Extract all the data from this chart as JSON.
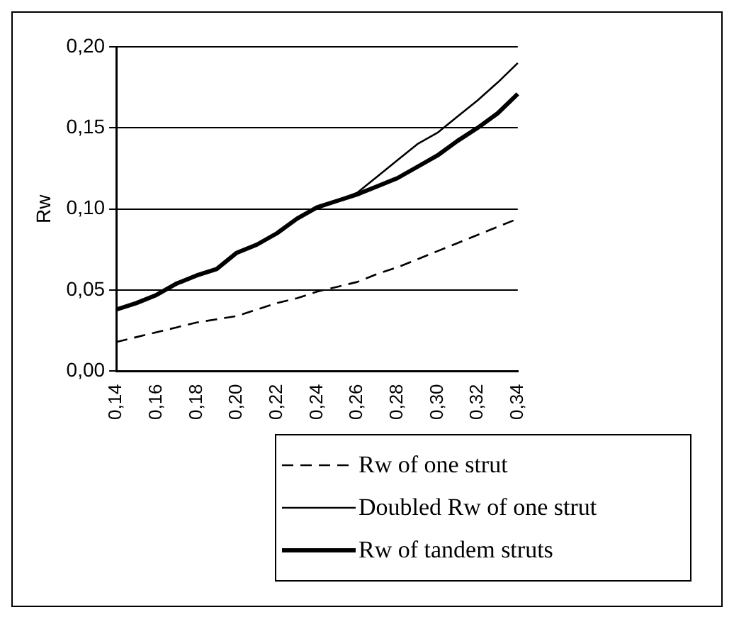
{
  "chart_data": {
    "type": "line",
    "ylabel": "Rw",
    "categories": [
      "0,14",
      null,
      "0,16",
      null,
      "0,18",
      null,
      "0,20",
      null,
      "0,22",
      null,
      "0,24",
      null,
      "0,26",
      null,
      "0,28",
      null,
      "0,30",
      null,
      "0,32",
      null,
      "0,34"
    ],
    "ylim": [
      0,
      0.2
    ],
    "yticks": [
      {
        "value": 0,
        "label": "0,00"
      },
      {
        "value": 0.05,
        "label": "0,05"
      },
      {
        "value": 0.1,
        "label": "0,10"
      },
      {
        "value": 0.15,
        "label": "0,15"
      },
      {
        "value": 0.2,
        "label": "0,20"
      }
    ],
    "grid": "y",
    "legend": "bottom",
    "marker": "none",
    "series": [
      {
        "name": "Rw of one strut",
        "color": "#000000",
        "line_style": "dashed",
        "values": [
          0.018,
          0.021,
          0.024,
          0.027,
          0.03,
          0.032,
          0.034,
          0.038,
          0.042,
          0.045,
          0.049,
          0.052,
          0.055,
          0.06,
          0.064,
          0.069,
          0.074,
          0.079,
          0.084,
          0.089,
          0.094
        ]
      },
      {
        "name": "Doubled Rw of one strut",
        "color": "#000000",
        "line_style": "solid",
        "values": [
          0.038,
          0.042,
          0.047,
          0.054,
          0.059,
          0.063,
          0.073,
          0.078,
          0.085,
          0.094,
          0.101,
          0.105,
          0.11,
          0.12,
          0.13,
          0.14,
          0.147,
          0.157,
          0.167,
          0.178,
          0.19
        ]
      },
      {
        "name": "Rw of tandem struts",
        "color": "#000000",
        "line_style": "solid",
        "values": [
          0.038,
          0.042,
          0.047,
          0.054,
          0.059,
          0.063,
          0.073,
          0.078,
          0.085,
          0.094,
          0.101,
          0.105,
          0.109,
          0.114,
          0.119,
          0.126,
          0.133,
          0.142,
          0.15,
          0.159,
          0.171
        ]
      }
    ]
  }
}
